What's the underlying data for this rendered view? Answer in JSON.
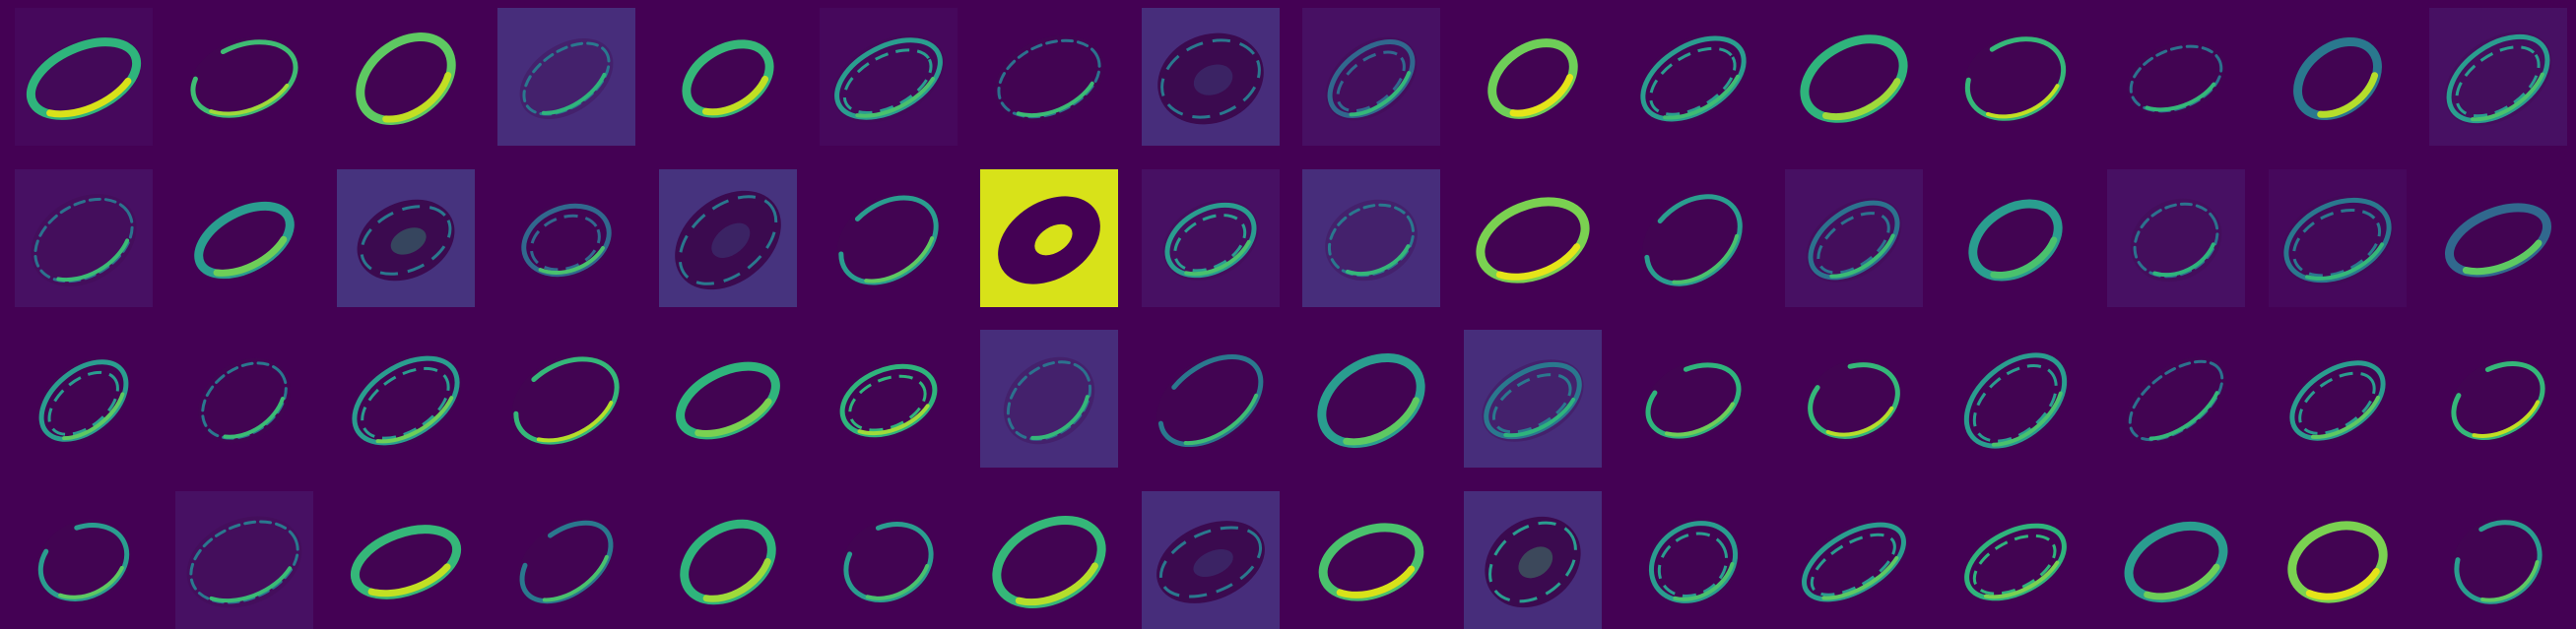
{
  "image": {
    "description_rows": 4,
    "description_cols": 16
  },
  "palette": {
    "background": "#440154",
    "cell_base": "#450457",
    "cell_bright": "#482374",
    "hole": "#3b0a4f",
    "teal": "#2a9d8f",
    "green": "#5ec962",
    "yellow": "#d8e219",
    "blue": "#31688e"
  },
  "tiles": [
    {
      "bg": "#46085c",
      "stroke": "#2fb47c",
      "hi": "#d8e219",
      "variant": "thick"
    },
    {
      "bg": "#440154",
      "stroke": "#3fbc73",
      "hi": "#9fda3a",
      "variant": "open"
    },
    {
      "bg": "#440154",
      "stroke": "#5ec962",
      "hi": "#c2df23",
      "variant": "thick"
    },
    {
      "bg": "#472d7b",
      "stroke": "#2a788e",
      "hi": "#2fb47c",
      "variant": "thin"
    },
    {
      "bg": "#440154",
      "stroke": "#35b779",
      "hi": "#c2df23",
      "variant": "thick"
    },
    {
      "bg": "#46085c",
      "stroke": "#2a9d8f",
      "hi": "#4ac16d",
      "variant": "double"
    },
    {
      "bg": "#440154",
      "stroke": "#2c728e",
      "hi": "#3bbb75",
      "variant": "thin"
    },
    {
      "bg": "#472d7b",
      "stroke": "#2a788e",
      "hi": "#3b528b",
      "variant": "hole"
    },
    {
      "bg": "#471063",
      "stroke": "#31688e",
      "hi": "#35b779",
      "variant": "double"
    },
    {
      "bg": "#440154",
      "stroke": "#6ece58",
      "hi": "#e5e419",
      "variant": "thick"
    },
    {
      "bg": "#440154",
      "stroke": "#2a9d8f",
      "hi": "#3fbc73",
      "variant": "double"
    },
    {
      "bg": "#440154",
      "stroke": "#2fb47c",
      "hi": "#9fda3a",
      "variant": "thick"
    },
    {
      "bg": "#440154",
      "stroke": "#35b779",
      "hi": "#c2df23",
      "variant": "open"
    },
    {
      "bg": "#440154",
      "stroke": "#2c728e",
      "hi": "#35b779",
      "variant": "thin"
    },
    {
      "bg": "#440154",
      "stroke": "#2a788e",
      "hi": "#b5de2b",
      "variant": "thick"
    },
    {
      "bg": "#471063",
      "stroke": "#2a9d8f",
      "hi": "#4ac16d",
      "variant": "double"
    },
    {
      "bg": "#471063",
      "stroke": "#2c728e",
      "hi": "#3bbb75",
      "variant": "thin"
    },
    {
      "bg": "#440154",
      "stroke": "#2a9d8f",
      "hi": "#6ece58",
      "variant": "thick"
    },
    {
      "bg": "#46337e",
      "stroke": "#2a788e",
      "hi": "#2fb47c",
      "variant": "hole"
    },
    {
      "bg": "#440154",
      "stroke": "#31688e",
      "hi": "#4ac16d",
      "variant": "double"
    },
    {
      "bg": "#46337e",
      "stroke": "#2a788e",
      "hi": "#3b528b",
      "variant": "hole"
    },
    {
      "bg": "#440154",
      "stroke": "#2a9d8f",
      "hi": "#5ec962",
      "variant": "open"
    },
    {
      "bg": "#d8e219",
      "stroke": "#440154",
      "hi": "#440154",
      "variant": "solid"
    },
    {
      "bg": "#471063",
      "stroke": "#2a9d8f",
      "hi": "#4ac16d",
      "variant": "double"
    },
    {
      "bg": "#472d7b",
      "stroke": "#2a788e",
      "hi": "#35b779",
      "variant": "thin"
    },
    {
      "bg": "#440154",
      "stroke": "#7ad151",
      "hi": "#e5e419",
      "variant": "thick"
    },
    {
      "bg": "#440154",
      "stroke": "#2a9d8f",
      "hi": "#4ac16d",
      "variant": "open"
    },
    {
      "bg": "#471063",
      "stroke": "#2c728e",
      "hi": "#3bbb75",
      "variant": "double"
    },
    {
      "bg": "#440154",
      "stroke": "#2a9d8f",
      "hi": "#4ac16d",
      "variant": "thick"
    },
    {
      "bg": "#471063",
      "stroke": "#2c728e",
      "hi": "#2fb47c",
      "variant": "thin"
    },
    {
      "bg": "#46085c",
      "stroke": "#2a788e",
      "hi": "#35b779",
      "variant": "double"
    },
    {
      "bg": "#440154",
      "stroke": "#31688e",
      "hi": "#5ec962",
      "variant": "thick"
    },
    {
      "bg": "#440154",
      "stroke": "#2a9d8f",
      "hi": "#5ec962",
      "variant": "double"
    },
    {
      "bg": "#440154",
      "stroke": "#2a788e",
      "hi": "#3bbb75",
      "variant": "thin"
    },
    {
      "bg": "#440154",
      "stroke": "#2a9d8f",
      "hi": "#6ece58",
      "variant": "double"
    },
    {
      "bg": "#440154",
      "stroke": "#35b779",
      "hi": "#b5de2b",
      "variant": "open"
    },
    {
      "bg": "#440154",
      "stroke": "#2fb47c",
      "hi": "#7ad151",
      "variant": "thick"
    },
    {
      "bg": "#440154",
      "stroke": "#2fb47c",
      "hi": "#9fda3a",
      "variant": "double"
    },
    {
      "bg": "#472d7b",
      "stroke": "#2c728e",
      "hi": "#35b779",
      "variant": "thin"
    },
    {
      "bg": "#440154",
      "stroke": "#2a788e",
      "hi": "#3fbc73",
      "variant": "open"
    },
    {
      "bg": "#440154",
      "stroke": "#2a9d8f",
      "hi": "#5ec962",
      "variant": "thick"
    },
    {
      "bg": "#472d7b",
      "stroke": "#2a788e",
      "hi": "#2fb47c",
      "variant": "double"
    },
    {
      "bg": "#440154",
      "stroke": "#2fb47c",
      "hi": "#6ece58",
      "variant": "open"
    },
    {
      "bg": "#440154",
      "stroke": "#35b779",
      "hi": "#b5de2b",
      "variant": "open"
    },
    {
      "bg": "#440154",
      "stroke": "#2a9d8f",
      "hi": "#4ac16d",
      "variant": "double"
    },
    {
      "bg": "#440154",
      "stroke": "#2c728e",
      "hi": "#35b779",
      "variant": "thin"
    },
    {
      "bg": "#440154",
      "stroke": "#2a9d8f",
      "hi": "#5ec962",
      "variant": "double"
    },
    {
      "bg": "#440154",
      "stroke": "#35b779",
      "hi": "#c2df23",
      "variant": "open"
    },
    {
      "bg": "#440154",
      "stroke": "#2a9d8f",
      "hi": "#5ec962",
      "variant": "open"
    },
    {
      "bg": "#471063",
      "stroke": "#2a788e",
      "hi": "#3bbb75",
      "variant": "thin"
    },
    {
      "bg": "#440154",
      "stroke": "#35b779",
      "hi": "#c2df23",
      "variant": "thick"
    },
    {
      "bg": "#440154",
      "stroke": "#2a788e",
      "hi": "#4ac16d",
      "variant": "open"
    },
    {
      "bg": "#440154",
      "stroke": "#2fb47c",
      "hi": "#9fda3a",
      "variant": "thick"
    },
    {
      "bg": "#440154",
      "stroke": "#2a9d8f",
      "hi": "#4ac16d",
      "variant": "open"
    },
    {
      "bg": "#440154",
      "stroke": "#35b779",
      "hi": "#b5de2b",
      "variant": "thick"
    },
    {
      "bg": "#472d7b",
      "stroke": "#2a788e",
      "hi": "#3b528b",
      "variant": "hole"
    },
    {
      "bg": "#440154",
      "stroke": "#4ac16d",
      "hi": "#d8e219",
      "variant": "thick"
    },
    {
      "bg": "#472d7b",
      "stroke": "#2a9d8f",
      "hi": "#3fbc73",
      "variant": "hole"
    },
    {
      "bg": "#440154",
      "stroke": "#2a9d8f",
      "hi": "#4ac16d",
      "variant": "double"
    },
    {
      "bg": "#440154",
      "stroke": "#2a9d8f",
      "hi": "#5ec962",
      "variant": "double"
    },
    {
      "bg": "#440154",
      "stroke": "#2fb47c",
      "hi": "#7ad151",
      "variant": "double"
    },
    {
      "bg": "#440154",
      "stroke": "#2a9d8f",
      "hi": "#6ece58",
      "variant": "thick"
    },
    {
      "bg": "#440154",
      "stroke": "#7ad151",
      "hi": "#e5e419",
      "variant": "thick"
    },
    {
      "bg": "#440154",
      "stroke": "#2a9d8f",
      "hi": "#5ec962",
      "variant": "open"
    }
  ]
}
